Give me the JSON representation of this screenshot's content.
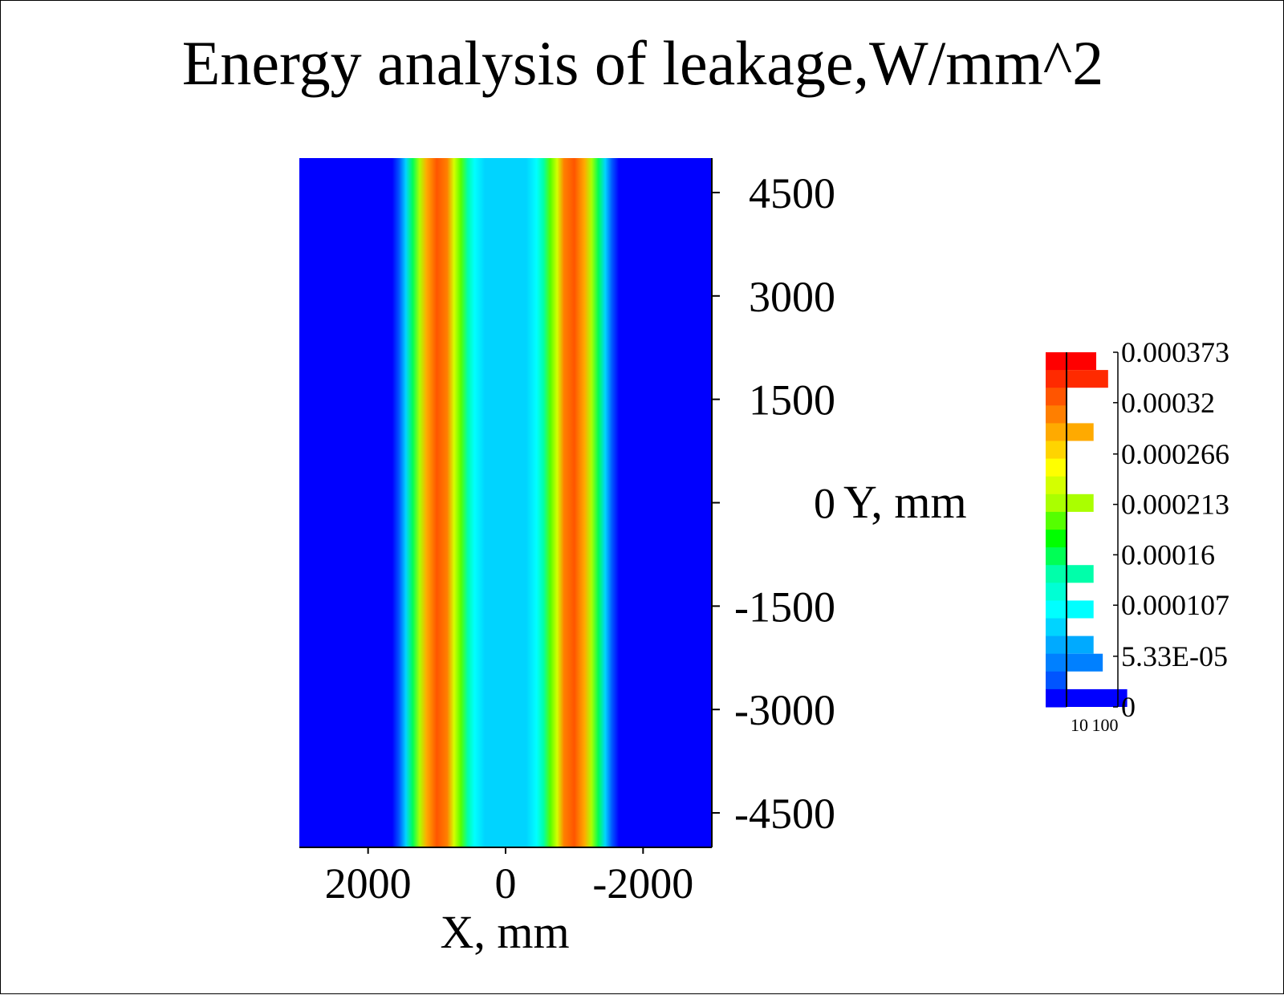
{
  "chart_data": {
    "type": "heatmap",
    "title": "Energy analysis of leakage,W/mm^2",
    "xlabel": "X, mm",
    "ylabel": "Y, mm",
    "x_axis": {
      "reversed": true,
      "range": [
        3000,
        -3000
      ],
      "ticks": [
        2000,
        0,
        -2000
      ]
    },
    "y_axis": {
      "range": [
        -5000,
        5000
      ],
      "ticks": [
        4500,
        3000,
        1500,
        0,
        -1500,
        -3000,
        -4500
      ]
    },
    "grid": false,
    "field": {
      "description_axis": "x",
      "x_samples": [
        -3000,
        -1650,
        -1550,
        -1450,
        -1350,
        -1250,
        -1150,
        -1000,
        -850,
        -750,
        -650,
        -550,
        -450,
        -300,
        0,
        300,
        450,
        550,
        650,
        750,
        850,
        1000,
        1150,
        1250,
        1350,
        1450,
        1550,
        1650,
        3000
      ],
      "values": [
        0,
        0,
        3e-05,
        8e-05,
        0.00015,
        0.00022,
        0.00028,
        0.00033,
        0.0003,
        0.00024,
        0.00019,
        0.00014,
        0.00011,
        9e-05,
        9e-05,
        9e-05,
        0.00011,
        0.00014,
        0.00019,
        0.00024,
        0.0003,
        0.00033,
        0.00028,
        0.00022,
        0.00015,
        8e-05,
        3e-05,
        0,
        0
      ]
    },
    "colorbar": {
      "placement": "right",
      "vmin": 0,
      "vmax": 0.000373,
      "levels": 20,
      "tick_labels": [
        "0.000373",
        "0.00032",
        "0.000266",
        "0.000213",
        "0.00016",
        "0.000107",
        "5.33E-05",
        "0"
      ],
      "tick_values": [
        0.000373,
        0.00032,
        0.000266,
        0.000213,
        0.00016,
        0.000107,
        5.33e-05,
        0
      ],
      "colors": [
        "#ff0000",
        "#ff2a00",
        "#ff5500",
        "#ff7f00",
        "#ffaa00",
        "#ffd400",
        "#ffff00",
        "#d4ff00",
        "#aaff00",
        "#55ff00",
        "#00ff00",
        "#00ff55",
        "#00ffaa",
        "#00ffd4",
        "#00ffff",
        "#00d4ff",
        "#00aaff",
        "#0080ff",
        "#0055ff",
        "#0000ff"
      ],
      "histogram_axis_labels": [
        "10",
        "100"
      ],
      "histogram": [
        {
          "level": 0,
          "count": 20
        },
        {
          "level": 1,
          "count": 70
        },
        {
          "level": 4,
          "count": 15
        },
        {
          "level": 8,
          "count": 15
        },
        {
          "level": 12,
          "count": 15
        },
        {
          "level": 14,
          "count": 15
        },
        {
          "level": 16,
          "count": 15
        },
        {
          "level": 17,
          "count": 40
        },
        {
          "level": 19,
          "count": 500
        }
      ]
    }
  }
}
